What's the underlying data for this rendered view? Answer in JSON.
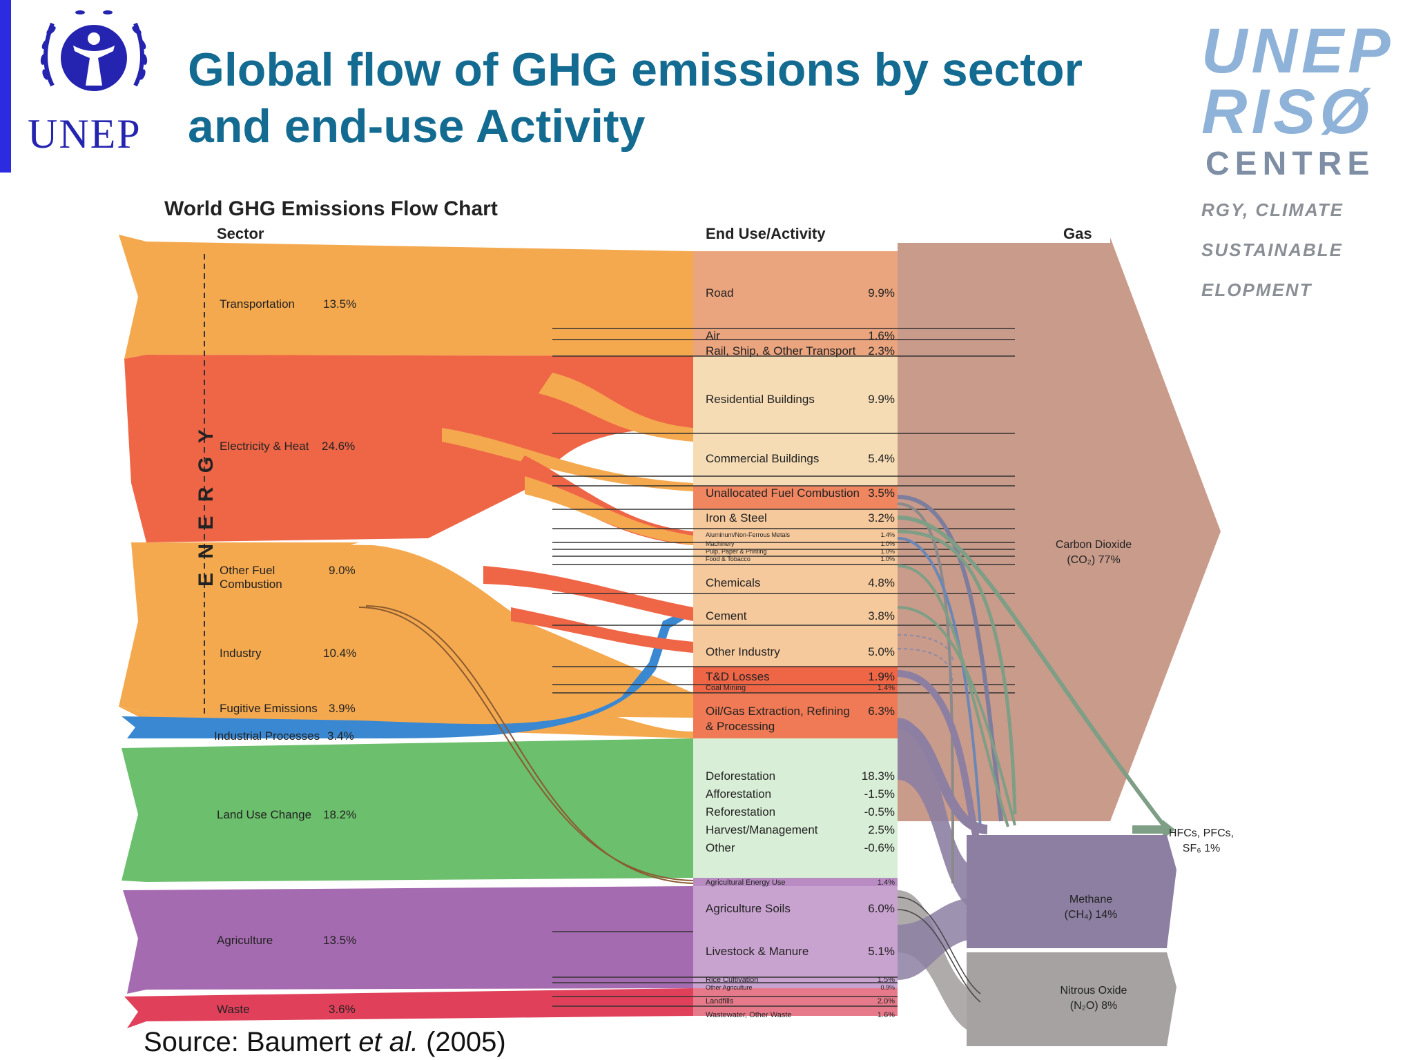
{
  "header": {
    "title_line1": "Global flow of GHG emissions by sector",
    "title_line2": "and end-use Activity",
    "unep_logo_text": "UNEP",
    "riso_logo": {
      "line1": "UNEP",
      "line2": "RISØ",
      "line3": "CENTRE",
      "tag1": "RGY, CLIMATE",
      "tag2": "SUSTAINABLE",
      "tag3": "ELOPMENT"
    }
  },
  "chart": {
    "title": "World GHG Emissions Flow Chart",
    "col_sector": "Sector",
    "col_enduse": "End Use/Activity",
    "col_gas": "Gas",
    "energy_label": "E N E R G Y",
    "sectors": [
      {
        "id": "transport",
        "label": "Transportation",
        "value": "13.5%",
        "color": "#f5a94e"
      },
      {
        "id": "elec",
        "label": "Electricity & Heat",
        "value": "24.6%",
        "color": "#ef6647"
      },
      {
        "id": "otherfuel",
        "label": "Other Fuel",
        "label2": "Combustion",
        "value": "9.0%",
        "color": "#f5a94e"
      },
      {
        "id": "industry",
        "label": "Industry",
        "value": "10.4%",
        "color": "#f5a94e"
      },
      {
        "id": "fugitive",
        "label": "Fugitive Emissions",
        "value": "3.9%",
        "color": "#f5a94e"
      },
      {
        "id": "indproc",
        "label": "Industrial Processes",
        "value": "3.4%",
        "color": "#3a88d2"
      },
      {
        "id": "landuse",
        "label": "Land Use Change",
        "value": "18.2%",
        "color": "#6cbf6c"
      },
      {
        "id": "agri",
        "label": "Agriculture",
        "value": "13.5%",
        "color": "#a56bb0"
      },
      {
        "id": "waste",
        "label": "Waste",
        "value": "3.6%",
        "color": "#e0405a"
      }
    ],
    "enduses": [
      {
        "label": "Road",
        "value": "9.9%"
      },
      {
        "label": "Air",
        "value": "1.6%"
      },
      {
        "label": "Rail, Ship, & Other Transport",
        "value": "2.3%"
      },
      {
        "label": "Residential Buildings",
        "value": "9.9%"
      },
      {
        "label": "Commercial Buildings",
        "value": "5.4%"
      },
      {
        "label": "Unallocated Fuel Combustion",
        "value": "3.5%"
      },
      {
        "label": "Iron & Steel",
        "value": "3.2%"
      },
      {
        "label": "Aluminum/Non-Ferrous Metals",
        "value": "1.4%"
      },
      {
        "label": "Machinery",
        "value": "1.0%"
      },
      {
        "label": "Pulp, Paper & Printing",
        "value": "1.0%"
      },
      {
        "label": "Food & Tobacco",
        "value": "1.0%"
      },
      {
        "label": "Chemicals",
        "value": "4.8%"
      },
      {
        "label": "Cement",
        "value": "3.8%"
      },
      {
        "label": "Other Industry",
        "value": "5.0%"
      },
      {
        "label": "T&D Losses",
        "value": "1.9%"
      },
      {
        "label": "Coal Mining",
        "value": "1.4%"
      },
      {
        "label": "Oil/Gas Extraction, Refining",
        "label2": "& Processing",
        "value": "6.3%"
      },
      {
        "label": "Deforestation",
        "value": "18.3%"
      },
      {
        "label": "Afforestation",
        "value": "-1.5%"
      },
      {
        "label": "Reforestation",
        "value": "-0.5%"
      },
      {
        "label": "Harvest/Management",
        "value": "2.5%"
      },
      {
        "label": "Other",
        "value": "-0.6%"
      },
      {
        "label": "Agricultural Energy Use",
        "value": "1.4%"
      },
      {
        "label": "Agriculture Soils",
        "value": "6.0%"
      },
      {
        "label": "Livestock & Manure",
        "value": "5.1%"
      },
      {
        "label": "Rice Cultivation",
        "value": "1.5%"
      },
      {
        "label": "Other Agriculture",
        "value": "0.9%"
      },
      {
        "label": "Landfills",
        "value": "2.0%"
      },
      {
        "label": "Wastewater, Other Waste",
        "value": "1.6%"
      }
    ],
    "gases": [
      {
        "label": "Carbon Dioxide",
        "label2": "(CO₂) 77%"
      },
      {
        "label": "HFCs, PFCs,",
        "label2": "SF₆ 1%"
      },
      {
        "label": "Methane",
        "label2": "(CH₄) 14%"
      },
      {
        "label": "Nitrous Oxide",
        "label2": "(N₂O) 8%"
      }
    ],
    "colors": {
      "orange": "#f5a94e",
      "red": "#ef6647",
      "blue": "#3a88d2",
      "green": "#6cbf6c",
      "purple": "#a56bb0",
      "pinkred": "#e0405a",
      "co2": "#c99b8b",
      "methane": "#8c7fa2",
      "n2o": "#a6a2a1",
      "hfc": "#7e9e86"
    }
  },
  "source": {
    "prefix": "Source: Baumert ",
    "italic": "et al.",
    "suffix": " (2005)"
  }
}
